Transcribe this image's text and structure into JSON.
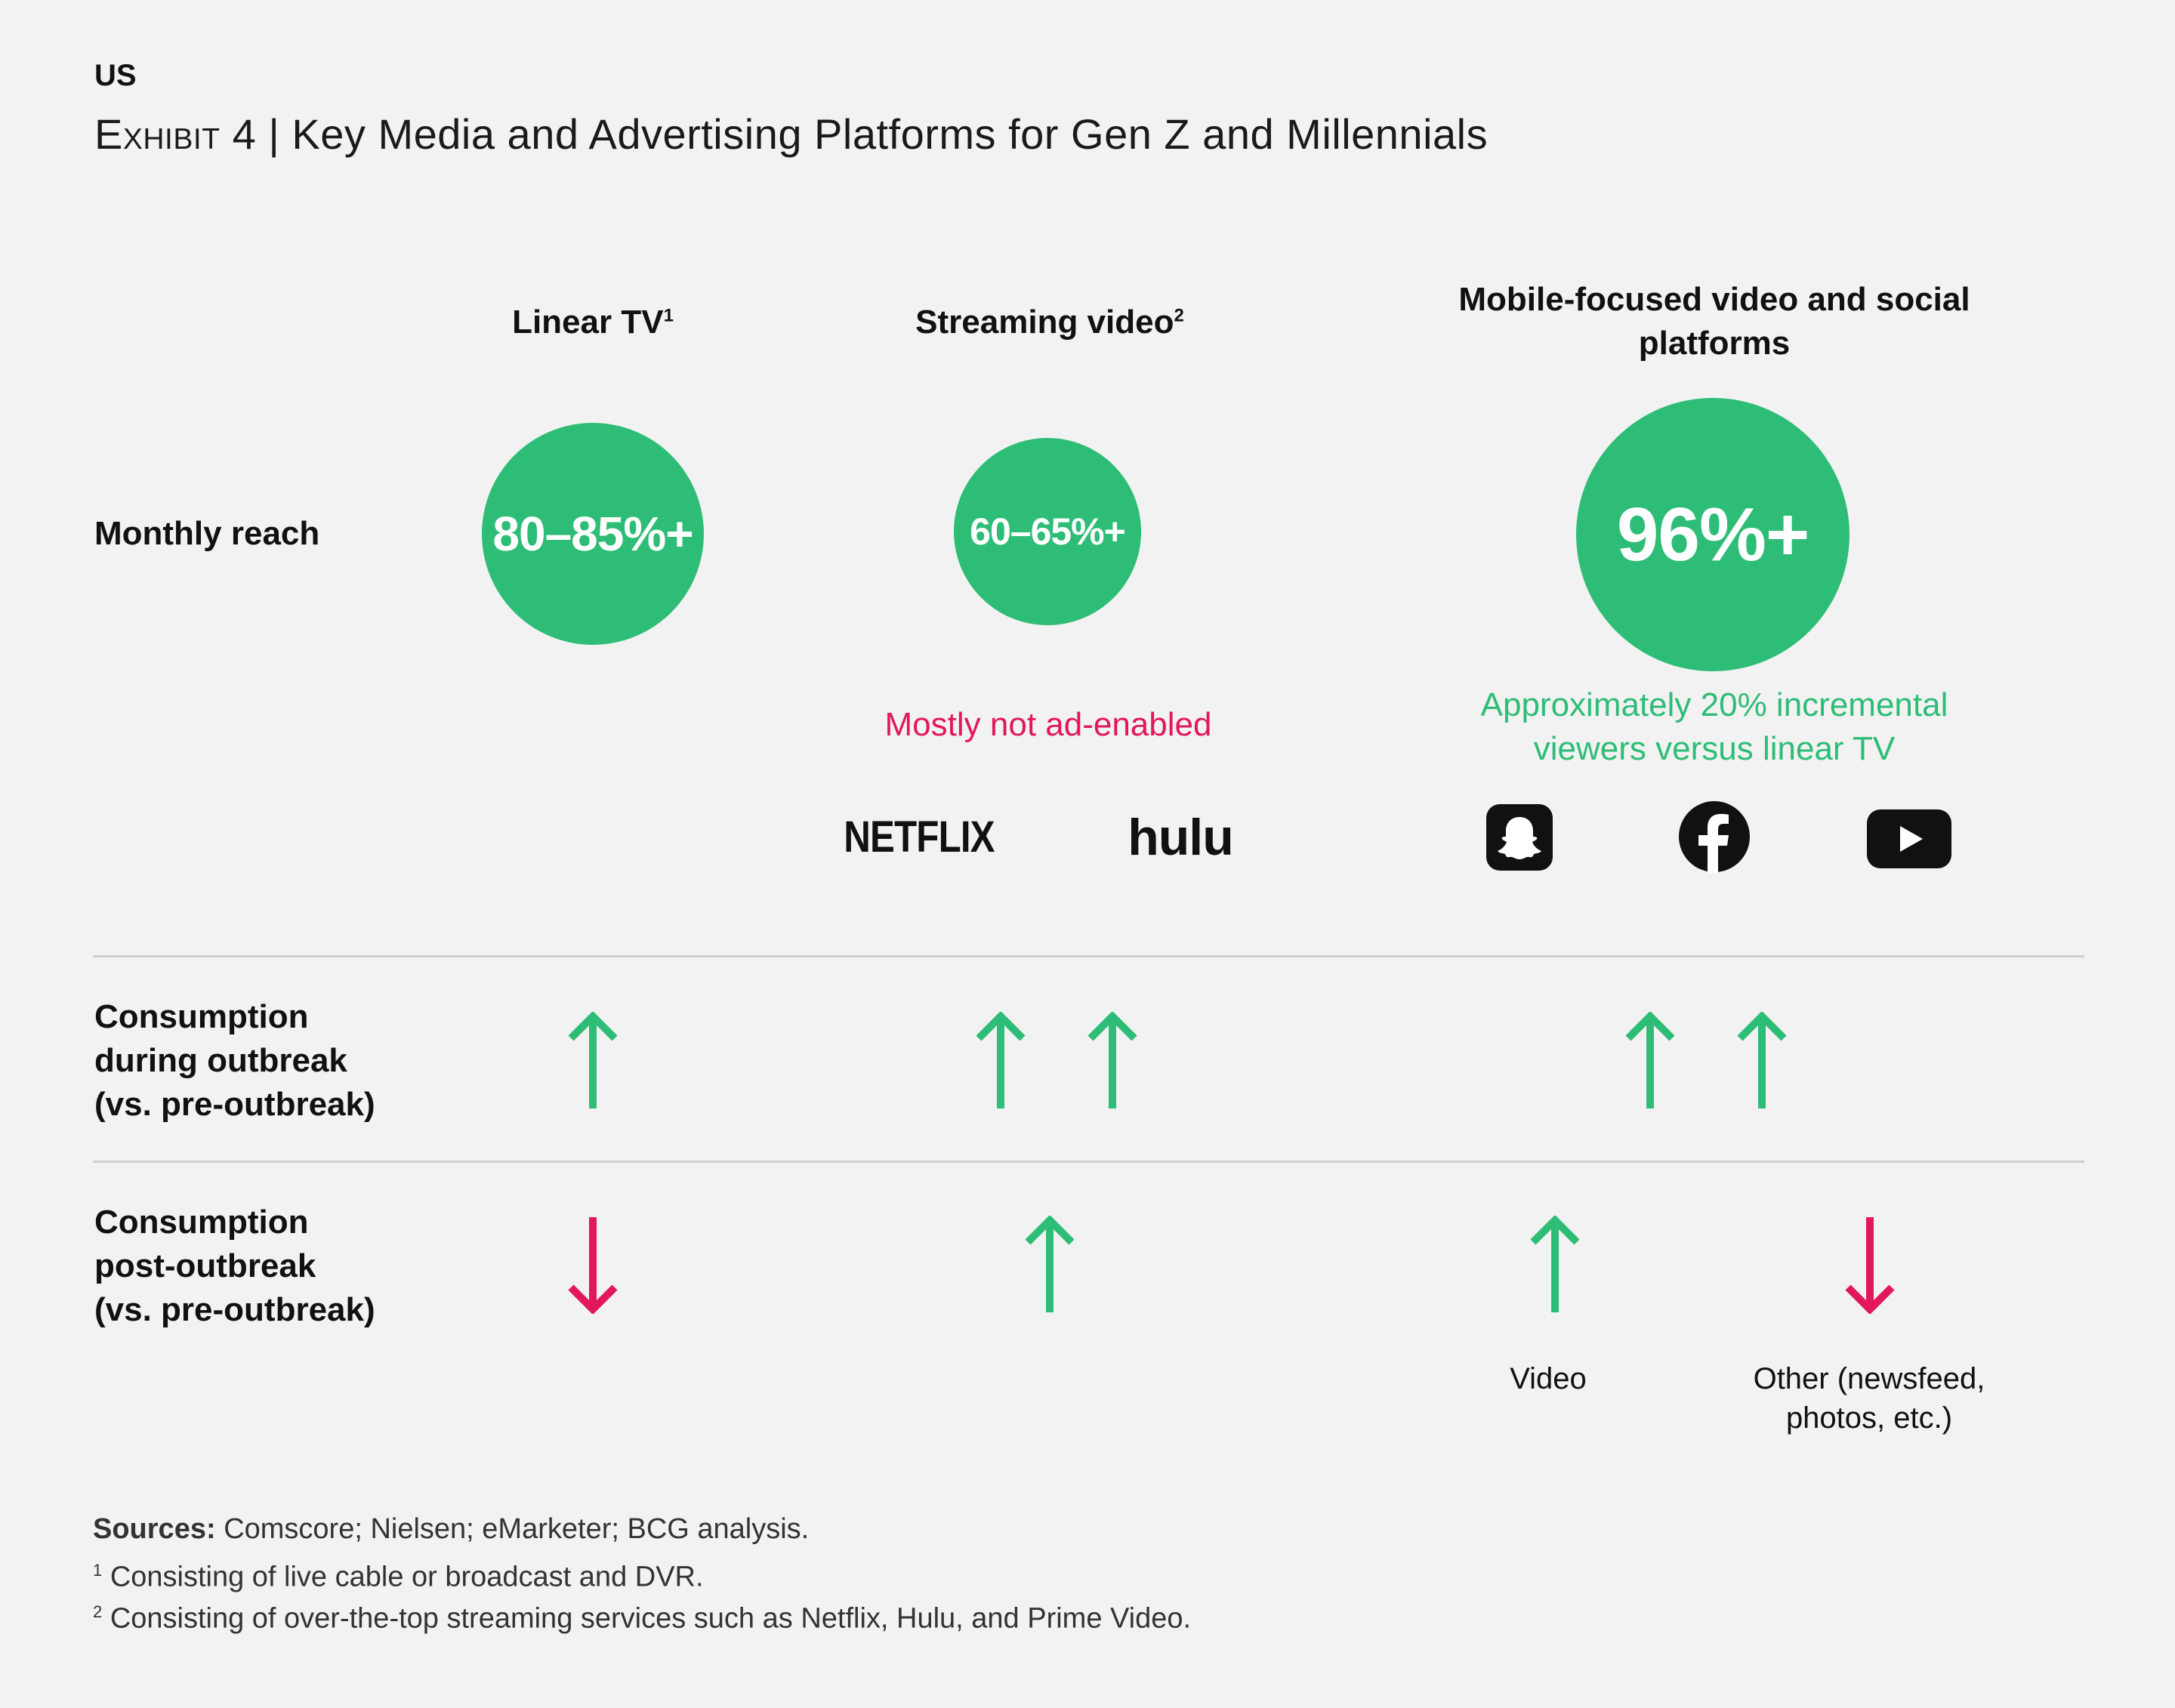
{
  "header": {
    "region": "US",
    "exhibit": "Exhibit 4",
    "separator": "|",
    "title": "Key Media and Advertising Platforms for Gen Z and Millennials"
  },
  "columns": [
    {
      "label": "Linear TV",
      "sup": "1",
      "reach": "80–85%+"
    },
    {
      "label": "Streaming video",
      "sup": "2",
      "reach": "60–65%+",
      "note": "Mostly not ad-enabled",
      "logos": [
        "NETFLIX",
        "hulu"
      ]
    },
    {
      "label": "Mobile-focused video and social platforms",
      "sup": "",
      "reach": "96%+",
      "note": "Approximately 20% incremental viewers versus linear TV",
      "logos": [
        "snapchat-icon",
        "facebook-icon",
        "youtube-icon"
      ]
    }
  ],
  "rows": {
    "monthly_reach": "Monthly reach",
    "during_line1": "Consumption",
    "during_line2": "during outbreak",
    "during_line3": "(vs. pre-outbreak)",
    "post_line1": "Consumption",
    "post_line2": "post-outbreak",
    "post_line3": "(vs. pre-outbreak)"
  },
  "arrows": {
    "during": {
      "linear_tv": [
        "up"
      ],
      "streaming": [
        "up",
        "up"
      ],
      "mobile": [
        "up",
        "up"
      ]
    },
    "post": {
      "linear_tv": [
        "down"
      ],
      "streaming": [
        "up"
      ],
      "mobile_video": [
        "up"
      ],
      "mobile_other": [
        "down"
      ]
    }
  },
  "captions": {
    "video": "Video",
    "other_line1": "Other (newsfeed,",
    "other_line2": "photos, etc.)"
  },
  "sources": {
    "label": "Sources:",
    "text": "Comscore; Nielsen; eMarketer; BCG analysis.",
    "fn1_mark": "1",
    "fn1": "Consisting of live cable or broadcast and DVR.",
    "fn2_mark": "2",
    "fn2": "Consisting of over-the-top streaming services such as Netflix, Hulu, and Prime Video."
  },
  "colors": {
    "green": "#2dbd76",
    "red": "#e3175b",
    "background": "#f2f2f2"
  }
}
